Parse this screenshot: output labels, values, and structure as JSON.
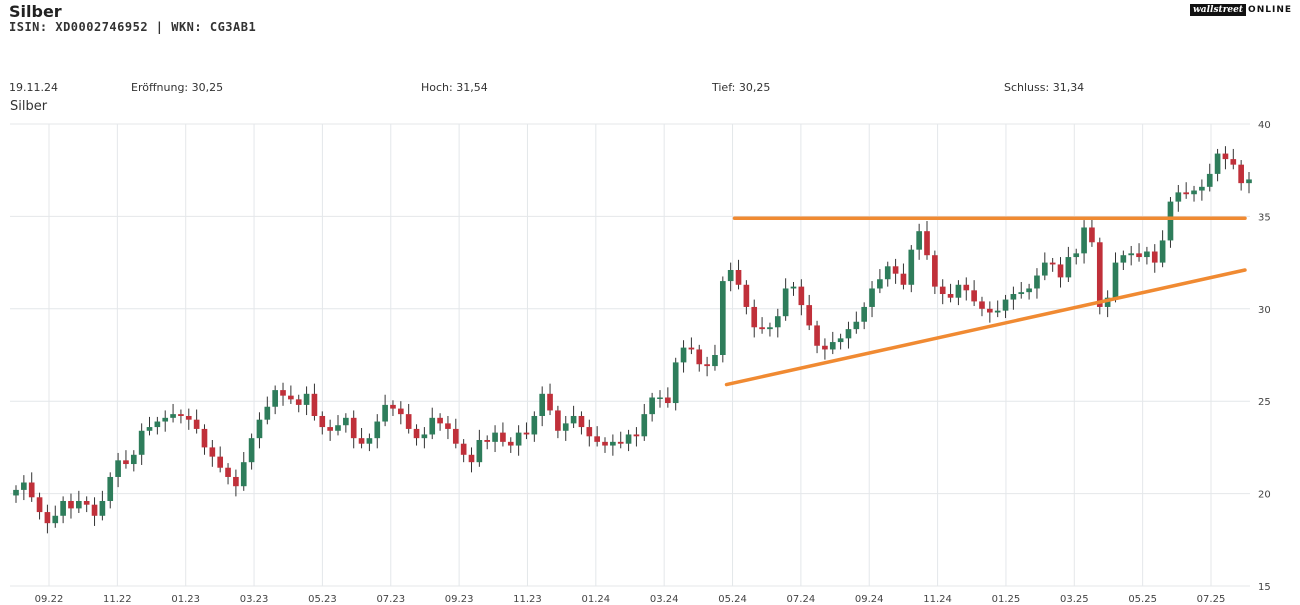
{
  "header": {
    "title": "Silber",
    "subtitle": "ISIN: XD0002746952  | WKN: CG3AB1",
    "brand_logo": "wallstreet",
    "brand_suffix": "ONLINE"
  },
  "ohlc_bar": {
    "date": "19.11.24",
    "open": "Eröffnung: 30,25",
    "high": "Hoch: 31,54",
    "low": "Tief: 30,25",
    "close": "Schluss: 31,34"
  },
  "chart_data": {
    "type": "candlestick",
    "title": "Silber",
    "ylim": [
      15,
      40
    ],
    "y_ticks": [
      15,
      20,
      25,
      30,
      35,
      40
    ],
    "x_ticks": [
      "09.22",
      "11.22",
      "01.23",
      "03.23",
      "05.23",
      "07.23",
      "09.23",
      "11.23",
      "01.24",
      "03.24",
      "05.24",
      "07.24",
      "09.24",
      "11.24",
      "01.25",
      "03.25",
      "05.25",
      "07.25"
    ],
    "grid": true,
    "up_color": "#2e7d5b",
    "down_color": "#c0303a",
    "series_close": [
      20.2,
      20.6,
      19.8,
      19.0,
      18.4,
      18.8,
      19.6,
      19.2,
      19.6,
      19.4,
      18.8,
      19.6,
      20.9,
      21.8,
      21.6,
      22.1,
      23.4,
      23.6,
      23.9,
      24.1,
      24.3,
      24.2,
      24.0,
      23.5,
      22.5,
      22.0,
      21.4,
      20.9,
      20.4,
      21.7,
      23.0,
      24.0,
      24.7,
      25.6,
      25.3,
      25.1,
      24.8,
      25.4,
      24.2,
      23.6,
      23.4,
      23.7,
      24.1,
      23.0,
      22.7,
      23.0,
      23.9,
      24.8,
      24.6,
      24.3,
      23.5,
      23.0,
      23.2,
      24.1,
      23.8,
      23.5,
      22.7,
      22.1,
      21.7,
      22.9,
      22.8,
      23.3,
      22.8,
      22.6,
      23.3,
      23.2,
      24.2,
      25.4,
      24.5,
      23.4,
      23.8,
      24.2,
      23.6,
      23.1,
      22.8,
      22.6,
      22.8,
      22.7,
      23.2,
      23.1,
      24.3,
      25.2,
      25.2,
      24.9,
      27.1,
      27.9,
      27.8,
      27.0,
      26.9,
      27.5,
      31.5,
      32.1,
      31.3,
      30.1,
      29.0,
      28.9,
      29.0,
      29.6,
      31.1,
      31.2,
      30.2,
      29.1,
      28.0,
      27.8,
      28.2,
      28.4,
      28.9,
      29.3,
      30.1,
      31.1,
      31.6,
      32.3,
      31.9,
      31.3,
      33.2,
      34.2,
      32.9,
      31.2,
      30.8,
      30.6,
      31.3,
      31.0,
      30.4,
      30.0,
      29.8,
      29.9,
      30.5,
      30.8,
      30.9,
      31.1,
      31.8,
      32.5,
      32.4,
      31.7,
      32.8,
      33.0,
      34.4,
      33.6,
      30.1,
      30.6,
      32.5,
      32.9,
      33.0,
      32.8,
      33.1,
      32.5,
      33.7,
      35.8,
      36.3,
      36.2,
      36.4,
      36.6,
      37.3,
      38.4,
      38.1,
      37.8,
      36.8,
      37.0
    ],
    "annotations": [
      {
        "type": "resistance-line",
        "from": [
          "05.24",
          34.9
        ],
        "to": [
          "07.25",
          34.9
        ],
        "color": "#f08a32"
      },
      {
        "type": "support-line",
        "from": [
          "05.24",
          25.9
        ],
        "to": [
          "07.25",
          32.1
        ],
        "color": "#f08a32"
      }
    ]
  }
}
